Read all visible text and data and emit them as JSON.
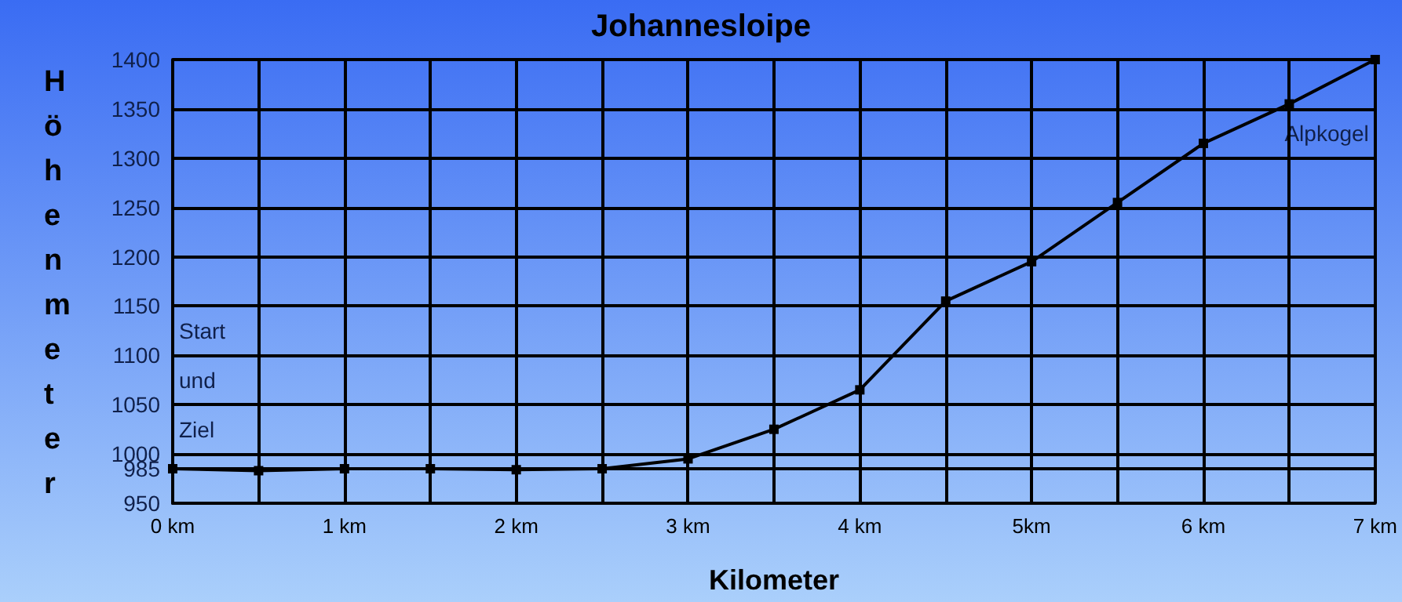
{
  "chart_data": {
    "type": "line",
    "title": "Johannesloipe",
    "xlabel": "Kilometer",
    "ylabel": "Höhenmeter",
    "x": [
      0,
      0.5,
      1,
      1.5,
      2,
      2.5,
      3,
      3.5,
      4,
      4.5,
      5,
      5.5,
      6,
      6.5,
      7
    ],
    "series": [
      {
        "color": "#000000",
        "values": [
          985,
          983,
          985,
          985,
          984,
          985,
          995,
          1025,
          1065,
          1155,
          1195,
          1255,
          1315,
          1355,
          1400
        ]
      }
    ],
    "xlim": [
      0,
      7
    ],
    "xticks": [
      {
        "value": 0,
        "label": "0 km"
      },
      {
        "value": 0.5,
        "label": null
      },
      {
        "value": 1,
        "label": "1 km"
      },
      {
        "value": 1.5,
        "label": null
      },
      {
        "value": 2,
        "label": "2 km"
      },
      {
        "value": 2.5,
        "label": null
      },
      {
        "value": 3,
        "label": "3 km"
      },
      {
        "value": 3.5,
        "label": null
      },
      {
        "value": 4,
        "label": "4 km"
      },
      {
        "value": 4.5,
        "label": null
      },
      {
        "value": 5,
        "label": "5km"
      },
      {
        "value": 5.5,
        "label": null
      },
      {
        "value": 6,
        "label": "6 km"
      },
      {
        "value": 6.5,
        "label": null
      },
      {
        "value": 7,
        "label": "7 km"
      }
    ],
    "ylim": [
      950,
      1400
    ],
    "yticks": [
      950,
      985,
      1000,
      1050,
      1100,
      1150,
      1200,
      1250,
      1300,
      1350,
      1400
    ],
    "annotations": [
      "Start\nund\nZiel",
      "Alpkogel"
    ],
    "grid": true,
    "marker": "square",
    "line_style": "solid"
  }
}
